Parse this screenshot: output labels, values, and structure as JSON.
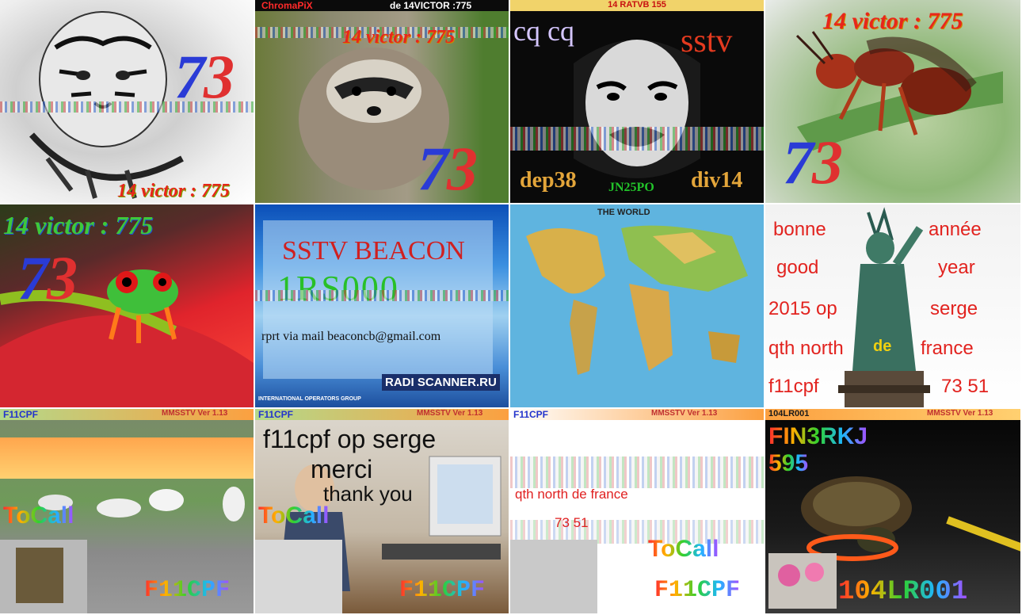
{
  "tiles": {
    "t1": {
      "number": "73",
      "caption": "14 victor : 775"
    },
    "t2": {
      "logo": "ChromaPiX",
      "header": "de 14VICTOR :775",
      "caption": "14 victor : 775",
      "number": "73"
    },
    "t3": {
      "header": "14 RATVB 155",
      "left_top": "cq cq",
      "right_top": "sstv",
      "bottom_left": "dep38",
      "bottom_mid": "JN25PO",
      "bottom_right": "div14"
    },
    "t4": {
      "caption": "14 victor : 775",
      "number": "73"
    },
    "t5": {
      "caption": "14 victor : 775",
      "number": "73"
    },
    "t6": {
      "title": "SSTV BEACON",
      "callsign": "1RS000",
      "line": "rprt  via mail  beaconcb@gmail.com",
      "logo": "RADI   SCANNER.RU",
      "footer": "INTERNATIONAL OPERATORS GROUP"
    },
    "t7": {
      "title": "THE WORLD"
    },
    "t8": {
      "lines": [
        [
          "bonne",
          "année"
        ],
        [
          "good",
          "year"
        ],
        [
          "2015 op",
          "serge"
        ],
        [
          "qth north",
          "de",
          "france"
        ],
        [
          "f11cpf",
          "73 51"
        ]
      ]
    },
    "t9": {
      "call": "F11CPF",
      "version": "MMSSTV Ver 1.13",
      "tocall": "ToCall",
      "sig": "F11CPF"
    },
    "t10": {
      "call": "F11CPF",
      "version": "MMSSTV Ver 1.13",
      "line1": "f11cpf op serge",
      "line2": "merci",
      "line3": "thank you",
      "tocall": "ToCall",
      "sig": "F11CPF"
    },
    "t11": {
      "call": "F11CPF",
      "version": "MMSSTV Ver 1.13",
      "line1": "qth north de france",
      "line2": "73 51",
      "tocall": "ToCall",
      "sig": "F11CPF"
    },
    "t12": {
      "call": "104LR001",
      "version": "MMSSTV Ver 1.13",
      "line1": "FIN3RKJ",
      "line2": "595",
      "sig": "104LR001"
    }
  }
}
